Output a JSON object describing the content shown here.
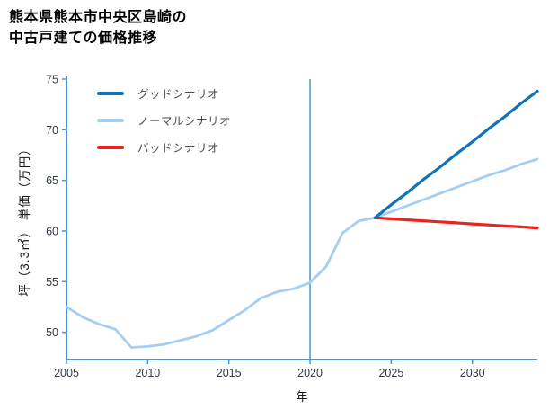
{
  "page": {
    "title_lines": [
      "熊本県熊本市中央区島崎の",
      "中古戸建ての価格推移"
    ]
  },
  "chart_data": {
    "type": "line",
    "title": "熊本県熊本市中央区島崎の中古戸建ての価格推移",
    "xlabel": "年",
    "ylabel": "坪（3.3㎡） 単価（万円）",
    "xlim": [
      2005,
      2034
    ],
    "ylim": [
      47.3,
      75
    ],
    "xticks": [
      2005,
      2010,
      2015,
      2020,
      2025,
      2030
    ],
    "yticks": [
      50,
      55,
      60,
      65,
      70,
      75
    ],
    "grid": false,
    "legend_position": "upper left inside",
    "axis_color": "#4a94d4",
    "tick_label_color": "#323a45",
    "annotations": [
      {
        "type": "vline",
        "x": 2020
      }
    ],
    "series": [
      {
        "name": "グッドシナリオ",
        "color": "#1274b8",
        "x": [
          2024,
          2025,
          2026,
          2027,
          2028,
          2029,
          2030,
          2031,
          2032,
          2033,
          2034
        ],
        "values": [
          61.3,
          62.6,
          63.8,
          65.1,
          66.3,
          67.6,
          68.8,
          70.1,
          71.3,
          72.6,
          73.8
        ]
      },
      {
        "name": "ノーマルシナリオ",
        "color": "#a4cff0",
        "x": [
          2005,
          2006,
          2007,
          2008,
          2009,
          2010,
          2011,
          2012,
          2013,
          2014,
          2015,
          2016,
          2017,
          2018,
          2019,
          2020,
          2021,
          2022,
          2023,
          2024,
          2025,
          2026,
          2027,
          2028,
          2029,
          2030,
          2031,
          2032,
          2033,
          2034
        ],
        "values": [
          52.5,
          51.5,
          50.8,
          50.3,
          48.5,
          48.6,
          48.8,
          49.2,
          49.6,
          50.2,
          51.2,
          52.2,
          53.4,
          54.0,
          54.3,
          54.9,
          56.5,
          59.8,
          61.0,
          61.3,
          61.9,
          62.5,
          63.1,
          63.7,
          64.3,
          64.9,
          65.5,
          66.0,
          66.6,
          67.1
        ]
      },
      {
        "name": "バッドシナリオ",
        "color": "#e62420",
        "x": [
          2024,
          2025,
          2026,
          2027,
          2028,
          2029,
          2030,
          2031,
          2032,
          2033,
          2034
        ],
        "values": [
          61.3,
          61.2,
          61.1,
          61.0,
          60.9,
          60.8,
          60.7,
          60.6,
          60.5,
          60.4,
          60.3
        ]
      }
    ]
  }
}
